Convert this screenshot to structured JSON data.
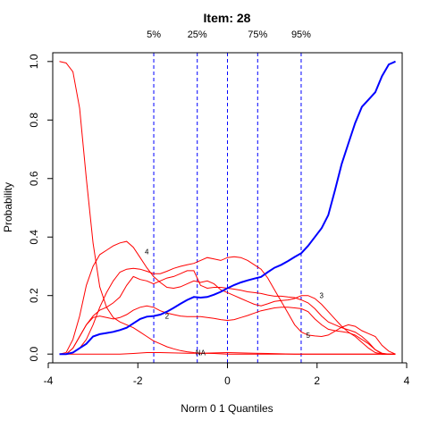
{
  "chart_data": {
    "type": "line",
    "title": "Item:  28",
    "xlabel": "Norm 0 1 Quantiles",
    "ylabel": "Probability",
    "xlim": [
      -3.9,
      3.9
    ],
    "ylim": [
      -0.03,
      1.03
    ],
    "xticks": [
      -4,
      -2,
      0,
      2,
      4
    ],
    "yticks": [
      0.0,
      0.2,
      0.4,
      0.6,
      0.8,
      1.0
    ],
    "ytick_labels": [
      "0.0",
      "0.2",
      "0.4",
      "0.6",
      "0.8",
      "1.0"
    ],
    "quantile_lines": [
      {
        "label": "5%",
        "x": -1.645
      },
      {
        "label": "25%",
        "x": -0.674
      },
      {
        "label": "",
        "x": 0.0
      },
      {
        "label": "75%",
        "x": 0.674
      },
      {
        "label": "95%",
        "x": 1.645
      }
    ],
    "colors": {
      "expected": "#0000ff",
      "options": "#ff0000",
      "quantiles": "#0000ff"
    },
    "expected_score": {
      "name": "expected score",
      "points": [
        [
          -3.75,
          0.0
        ],
        [
          -3.6,
          0.0
        ],
        [
          -3.45,
          0.005
        ],
        [
          -3.3,
          0.02
        ],
        [
          -3.15,
          0.035
        ],
        [
          -3.0,
          0.06
        ],
        [
          -2.85,
          0.068
        ],
        [
          -2.7,
          0.072
        ],
        [
          -2.55,
          0.076
        ],
        [
          -2.4,
          0.082
        ],
        [
          -2.25,
          0.09
        ],
        [
          -2.1,
          0.105
        ],
        [
          -1.95,
          0.12
        ],
        [
          -1.8,
          0.128
        ],
        [
          -1.65,
          0.13
        ],
        [
          -1.5,
          0.135
        ],
        [
          -1.35,
          0.145
        ],
        [
          -1.2,
          0.158
        ],
        [
          -1.05,
          0.172
        ],
        [
          -0.9,
          0.185
        ],
        [
          -0.75,
          0.195
        ],
        [
          -0.6,
          0.193
        ],
        [
          -0.45,
          0.195
        ],
        [
          -0.3,
          0.203
        ],
        [
          -0.15,
          0.213
        ],
        [
          0.0,
          0.225
        ],
        [
          0.15,
          0.236
        ],
        [
          0.3,
          0.245
        ],
        [
          0.45,
          0.252
        ],
        [
          0.6,
          0.258
        ],
        [
          0.75,
          0.264
        ],
        [
          0.9,
          0.28
        ],
        [
          1.05,
          0.295
        ],
        [
          1.2,
          0.305
        ],
        [
          1.35,
          0.318
        ],
        [
          1.5,
          0.332
        ],
        [
          1.65,
          0.345
        ],
        [
          1.8,
          0.37
        ],
        [
          1.95,
          0.4
        ],
        [
          2.1,
          0.43
        ],
        [
          2.25,
          0.475
        ],
        [
          2.4,
          0.56
        ],
        [
          2.55,
          0.65
        ],
        [
          2.7,
          0.72
        ],
        [
          2.85,
          0.79
        ],
        [
          3.0,
          0.845
        ],
        [
          3.15,
          0.87
        ],
        [
          3.3,
          0.895
        ],
        [
          3.45,
          0.95
        ],
        [
          3.6,
          0.99
        ],
        [
          3.75,
          1.0
        ]
      ]
    },
    "options": [
      {
        "label": "",
        "points": [
          [
            -3.75,
            1.0
          ],
          [
            -3.6,
            0.995
          ],
          [
            -3.45,
            0.965
          ],
          [
            -3.3,
            0.84
          ],
          [
            -3.15,
            0.6
          ],
          [
            -3.0,
            0.38
          ],
          [
            -2.85,
            0.23
          ],
          [
            -2.7,
            0.16
          ],
          [
            -2.55,
            0.125
          ],
          [
            -2.4,
            0.11
          ],
          [
            -2.25,
            0.1
          ],
          [
            -2.1,
            0.09
          ],
          [
            -1.95,
            0.075
          ],
          [
            -1.8,
            0.06
          ],
          [
            -1.65,
            0.045
          ],
          [
            -1.5,
            0.035
          ],
          [
            -1.35,
            0.025
          ],
          [
            -1.2,
            0.018
          ],
          [
            -1.05,
            0.012
          ],
          [
            -0.9,
            0.008
          ],
          [
            -0.75,
            0.005
          ],
          [
            -0.6,
            0.003
          ],
          [
            -0.3,
            0.002
          ],
          [
            0.0,
            0.0
          ],
          [
            3.75,
            0.0
          ]
        ]
      },
      {
        "label": "NA",
        "points": [
          [
            -3.75,
            0.0
          ],
          [
            -3.3,
            0.0
          ],
          [
            -3.0,
            0.0
          ],
          [
            -2.7,
            0.0
          ],
          [
            -2.4,
            0.0
          ],
          [
            -2.1,
            0.002
          ],
          [
            -1.8,
            0.005
          ],
          [
            -1.5,
            0.005
          ],
          [
            -1.2,
            0.004
          ],
          [
            -0.9,
            0.003
          ],
          [
            -0.6,
            0.003
          ],
          [
            -0.3,
            0.004
          ],
          [
            0.0,
            0.005
          ],
          [
            0.3,
            0.004
          ],
          [
            0.6,
            0.003
          ],
          [
            0.9,
            0.002
          ],
          [
            1.2,
            0.001
          ],
          [
            1.5,
            0.0
          ],
          [
            2.0,
            0.0
          ],
          [
            3.0,
            0.0
          ],
          [
            3.75,
            0.0
          ]
        ]
      },
      {
        "label": "2",
        "points": [
          [
            -3.75,
            0.0
          ],
          [
            -3.6,
            0.0
          ],
          [
            -3.45,
            0.02
          ],
          [
            -3.3,
            0.06
          ],
          [
            -3.15,
            0.1
          ],
          [
            -3.0,
            0.125
          ],
          [
            -2.85,
            0.13
          ],
          [
            -2.7,
            0.125
          ],
          [
            -2.55,
            0.12
          ],
          [
            -2.4,
            0.125
          ],
          [
            -2.25,
            0.135
          ],
          [
            -2.1,
            0.15
          ],
          [
            -1.95,
            0.16
          ],
          [
            -1.8,
            0.165
          ],
          [
            -1.65,
            0.16
          ],
          [
            -1.5,
            0.148
          ],
          [
            -1.35,
            0.14
          ],
          [
            -1.2,
            0.135
          ],
          [
            -1.05,
            0.13
          ],
          [
            -0.9,
            0.128
          ],
          [
            -0.75,
            0.128
          ],
          [
            -0.6,
            0.128
          ],
          [
            -0.45,
            0.125
          ],
          [
            -0.3,
            0.122
          ],
          [
            -0.15,
            0.118
          ],
          [
            0.0,
            0.115
          ],
          [
            0.15,
            0.118
          ],
          [
            0.3,
            0.125
          ],
          [
            0.45,
            0.132
          ],
          [
            0.6,
            0.14
          ],
          [
            0.75,
            0.148
          ],
          [
            0.9,
            0.153
          ],
          [
            1.05,
            0.158
          ],
          [
            1.2,
            0.16
          ],
          [
            1.35,
            0.16
          ],
          [
            1.5,
            0.158
          ],
          [
            1.65,
            0.155
          ],
          [
            1.8,
            0.145
          ],
          [
            1.95,
            0.12
          ],
          [
            2.1,
            0.1
          ],
          [
            2.25,
            0.085
          ],
          [
            2.4,
            0.08
          ],
          [
            2.55,
            0.077
          ],
          [
            2.7,
            0.073
          ],
          [
            2.85,
            0.065
          ],
          [
            3.0,
            0.05
          ],
          [
            3.15,
            0.035
          ],
          [
            3.3,
            0.015
          ],
          [
            3.45,
            0.003
          ],
          [
            3.6,
            0.0
          ],
          [
            3.75,
            0.0
          ]
        ]
      },
      {
        "label": "4",
        "points": [
          [
            -3.75,
            0.0
          ],
          [
            -3.6,
            0.0
          ],
          [
            -3.45,
            0.02
          ],
          [
            -3.3,
            0.06
          ],
          [
            -3.15,
            0.1
          ],
          [
            -3.0,
            0.13
          ],
          [
            -2.85,
            0.15
          ],
          [
            -2.7,
            0.16
          ],
          [
            -2.55,
            0.175
          ],
          [
            -2.4,
            0.195
          ],
          [
            -2.25,
            0.235
          ],
          [
            -2.1,
            0.265
          ],
          [
            -1.95,
            0.255
          ],
          [
            -1.8,
            0.25
          ],
          [
            -1.65,
            0.24
          ],
          [
            -1.5,
            0.25
          ],
          [
            -1.35,
            0.26
          ],
          [
            -1.2,
            0.265
          ],
          [
            -1.05,
            0.275
          ],
          [
            -0.9,
            0.285
          ],
          [
            -0.75,
            0.285
          ],
          [
            -0.6,
            0.235
          ],
          [
            -0.45,
            0.225
          ],
          [
            -0.3,
            0.228
          ],
          [
            -0.15,
            0.228
          ],
          [
            0.0,
            0.225
          ],
          [
            0.15,
            0.222
          ],
          [
            0.3,
            0.218
          ],
          [
            0.45,
            0.213
          ],
          [
            0.6,
            0.21
          ],
          [
            0.75,
            0.207
          ],
          [
            0.9,
            0.202
          ],
          [
            1.05,
            0.198
          ],
          [
            1.2,
            0.198
          ],
          [
            1.35,
            0.195
          ],
          [
            1.5,
            0.193
          ],
          [
            1.65,
            0.185
          ],
          [
            1.8,
            0.175
          ],
          [
            1.95,
            0.155
          ],
          [
            2.1,
            0.13
          ],
          [
            2.25,
            0.11
          ],
          [
            2.4,
            0.1
          ],
          [
            2.55,
            0.09
          ],
          [
            2.7,
            0.083
          ],
          [
            2.85,
            0.075
          ],
          [
            3.0,
            0.06
          ],
          [
            3.15,
            0.04
          ],
          [
            3.3,
            0.015
          ],
          [
            3.45,
            0.0
          ],
          [
            3.6,
            0.0
          ],
          [
            3.75,
            0.0
          ]
        ]
      },
      {
        "label": "3",
        "points": [
          [
            -3.75,
            0.0
          ],
          [
            -3.6,
            0.005
          ],
          [
            -3.45,
            0.05
          ],
          [
            -3.3,
            0.13
          ],
          [
            -3.15,
            0.235
          ],
          [
            -3.0,
            0.3
          ],
          [
            -2.85,
            0.34
          ],
          [
            -2.7,
            0.355
          ],
          [
            -2.55,
            0.37
          ],
          [
            -2.4,
            0.38
          ],
          [
            -2.25,
            0.385
          ],
          [
            -2.1,
            0.365
          ],
          [
            -1.95,
            0.33
          ],
          [
            -1.8,
            0.295
          ],
          [
            -1.65,
            0.265
          ],
          [
            -1.5,
            0.245
          ],
          [
            -1.35,
            0.228
          ],
          [
            -1.2,
            0.225
          ],
          [
            -1.05,
            0.23
          ],
          [
            -0.9,
            0.24
          ],
          [
            -0.75,
            0.25
          ],
          [
            -0.6,
            0.245
          ],
          [
            -0.45,
            0.25
          ],
          [
            -0.3,
            0.24
          ],
          [
            -0.15,
            0.22
          ],
          [
            0.0,
            0.21
          ],
          [
            0.15,
            0.2
          ],
          [
            0.3,
            0.19
          ],
          [
            0.45,
            0.18
          ],
          [
            0.6,
            0.17
          ],
          [
            0.75,
            0.165
          ],
          [
            0.9,
            0.172
          ],
          [
            1.05,
            0.18
          ],
          [
            1.2,
            0.183
          ],
          [
            1.35,
            0.185
          ],
          [
            1.5,
            0.19
          ],
          [
            1.65,
            0.2
          ],
          [
            1.8,
            0.2
          ],
          [
            1.95,
            0.19
          ],
          [
            2.1,
            0.17
          ],
          [
            2.25,
            0.145
          ],
          [
            2.4,
            0.12
          ],
          [
            2.55,
            0.095
          ],
          [
            2.7,
            0.075
          ],
          [
            2.85,
            0.06
          ],
          [
            3.0,
            0.04
          ],
          [
            3.15,
            0.02
          ],
          [
            3.3,
            0.005
          ],
          [
            3.45,
            0.0
          ],
          [
            3.6,
            0.0
          ],
          [
            3.75,
            0.0
          ]
        ]
      },
      {
        "label": "5",
        "points": [
          [
            -3.75,
            0.0
          ],
          [
            -3.6,
            0.0
          ],
          [
            -3.45,
            0.005
          ],
          [
            -3.3,
            0.02
          ],
          [
            -3.15,
            0.05
          ],
          [
            -3.0,
            0.1
          ],
          [
            -2.85,
            0.16
          ],
          [
            -2.7,
            0.21
          ],
          [
            -2.55,
            0.25
          ],
          [
            -2.4,
            0.28
          ],
          [
            -2.25,
            0.29
          ],
          [
            -2.1,
            0.293
          ],
          [
            -1.95,
            0.29
          ],
          [
            -1.8,
            0.283
          ],
          [
            -1.65,
            0.275
          ],
          [
            -1.5,
            0.275
          ],
          [
            -1.35,
            0.283
          ],
          [
            -1.2,
            0.293
          ],
          [
            -1.05,
            0.3
          ],
          [
            -0.9,
            0.305
          ],
          [
            -0.75,
            0.31
          ],
          [
            -0.6,
            0.32
          ],
          [
            -0.45,
            0.33
          ],
          [
            -0.3,
            0.325
          ],
          [
            -0.15,
            0.32
          ],
          [
            0.0,
            0.33
          ],
          [
            0.15,
            0.333
          ],
          [
            0.3,
            0.33
          ],
          [
            0.45,
            0.32
          ],
          [
            0.6,
            0.305
          ],
          [
            0.75,
            0.29
          ],
          [
            0.9,
            0.26
          ],
          [
            1.05,
            0.22
          ],
          [
            1.2,
            0.18
          ],
          [
            1.35,
            0.14
          ],
          [
            1.5,
            0.1
          ],
          [
            1.65,
            0.075
          ],
          [
            1.8,
            0.065
          ],
          [
            1.95,
            0.062
          ],
          [
            2.1,
            0.06
          ],
          [
            2.25,
            0.065
          ],
          [
            2.4,
            0.078
          ],
          [
            2.55,
            0.092
          ],
          [
            2.7,
            0.1
          ],
          [
            2.85,
            0.095
          ],
          [
            3.0,
            0.08
          ],
          [
            3.15,
            0.07
          ],
          [
            3.3,
            0.06
          ],
          [
            3.45,
            0.03
          ],
          [
            3.6,
            0.01
          ],
          [
            3.75,
            0.0
          ]
        ]
      }
    ],
    "curve_labels": [
      {
        "text": "4",
        "x": -1.8,
        "y": 0.35
      },
      {
        "text": "2",
        "x": -1.35,
        "y": 0.13
      },
      {
        "text": "NA",
        "x": -0.6,
        "y": 0.005
      },
      {
        "text": "3",
        "x": 2.1,
        "y": 0.2
      },
      {
        "text": "5",
        "x": 1.8,
        "y": 0.065
      }
    ]
  }
}
